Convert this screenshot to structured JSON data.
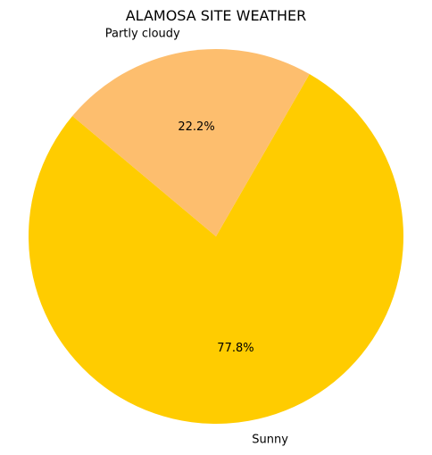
{
  "chart_data": {
    "type": "pie",
    "title": "ALAMOSA SITE WEATHER",
    "slices": [
      {
        "label": "Sunny",
        "percent_label": "77.8%",
        "value": 77.8,
        "color": "#FFCC00"
      },
      {
        "label": "Partly cloudy",
        "percent_label": "22.2%",
        "value": 22.2,
        "color": "#FDBE6E"
      }
    ],
    "start_angle_deg": 140,
    "direction": "counterclockwise"
  }
}
